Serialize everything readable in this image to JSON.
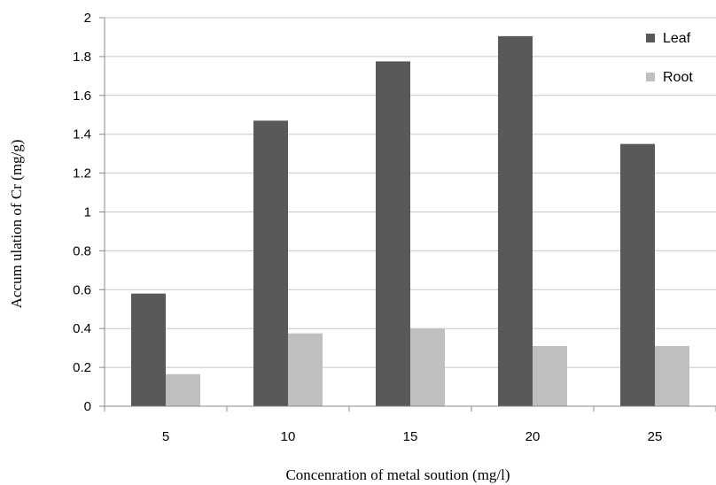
{
  "chart_data": {
    "type": "bar",
    "categories": [
      "5",
      "10",
      "15",
      "20",
      "25"
    ],
    "series": [
      {
        "name": "Leaf",
        "color": "#595959",
        "values": [
          0.58,
          1.47,
          1.775,
          1.905,
          1.35
        ]
      },
      {
        "name": "Root",
        "color": "#bfbfbf",
        "values": [
          0.165,
          0.375,
          0.4,
          0.31,
          0.31
        ]
      }
    ],
    "title": "",
    "xlabel": "Concenration of metal soution (mg/l)",
    "ylabel": "Accum ulation of Cr (mg/g)",
    "ylim": [
      0,
      2
    ],
    "yticks": [
      "0",
      "0.2",
      "0.4",
      "0.6",
      "0.8",
      "1",
      "1.2",
      "1.4",
      "1.6",
      "1.8",
      "2"
    ],
    "grid": true,
    "legend_position": "top-right"
  }
}
